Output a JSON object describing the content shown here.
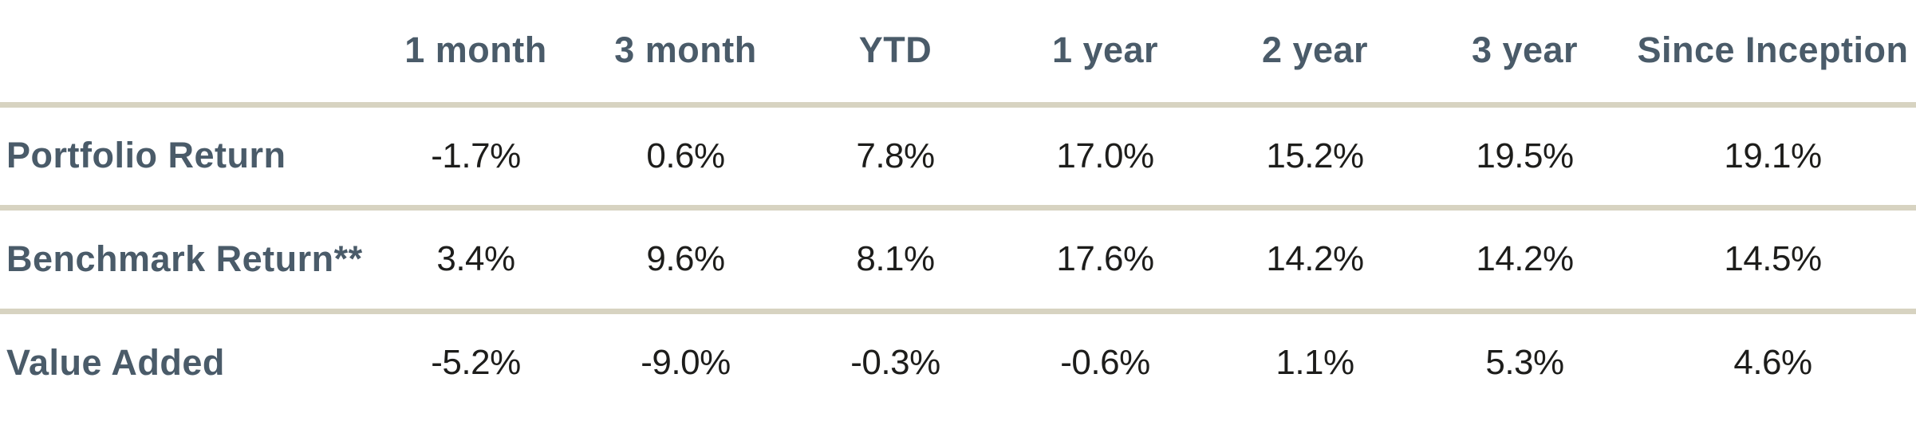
{
  "colors": {
    "header_text": "#4a5b69",
    "row_label_text": "#4a5b69",
    "value_text": "#1d1d1b",
    "divider": "#d7d3c1",
    "background": "#ffffff"
  },
  "table": {
    "columns": [
      "",
      "1 month",
      "3 month",
      "YTD",
      "1 year",
      "2 year",
      "3 year",
      "Since Inception"
    ],
    "rows": [
      {
        "label": "Portfolio Return",
        "values": [
          "-1.7%",
          "0.6%",
          "7.8%",
          "17.0%",
          "15.2%",
          "19.5%",
          "19.1%"
        ]
      },
      {
        "label": "Benchmark Return**",
        "values": [
          "3.4%",
          "9.6%",
          "8.1%",
          "17.6%",
          "14.2%",
          "14.2%",
          "14.5%"
        ]
      },
      {
        "label": "Value Added",
        "values": [
          "-5.2%",
          "-9.0%",
          "-0.3%",
          "-0.6%",
          "1.1%",
          "5.3%",
          "4.6%"
        ]
      }
    ]
  },
  "chart_data": {
    "type": "table",
    "categories": [
      "1 month",
      "3 month",
      "YTD",
      "1 year",
      "2 year",
      "3 year",
      "Since Inception"
    ],
    "series": [
      {
        "name": "Portfolio Return",
        "values": [
          -1.7,
          0.6,
          7.8,
          17.0,
          15.2,
          19.5,
          19.1
        ]
      },
      {
        "name": "Benchmark Return**",
        "values": [
          3.4,
          9.6,
          8.1,
          17.6,
          14.2,
          14.2,
          14.5
        ]
      },
      {
        "name": "Value Added",
        "values": [
          -5.2,
          -9.0,
          -0.3,
          -0.6,
          1.1,
          5.3,
          4.6
        ]
      }
    ],
    "value_unit": "%",
    "title": "",
    "layout": {
      "grid": false,
      "dividers": "horizontal-only"
    }
  }
}
